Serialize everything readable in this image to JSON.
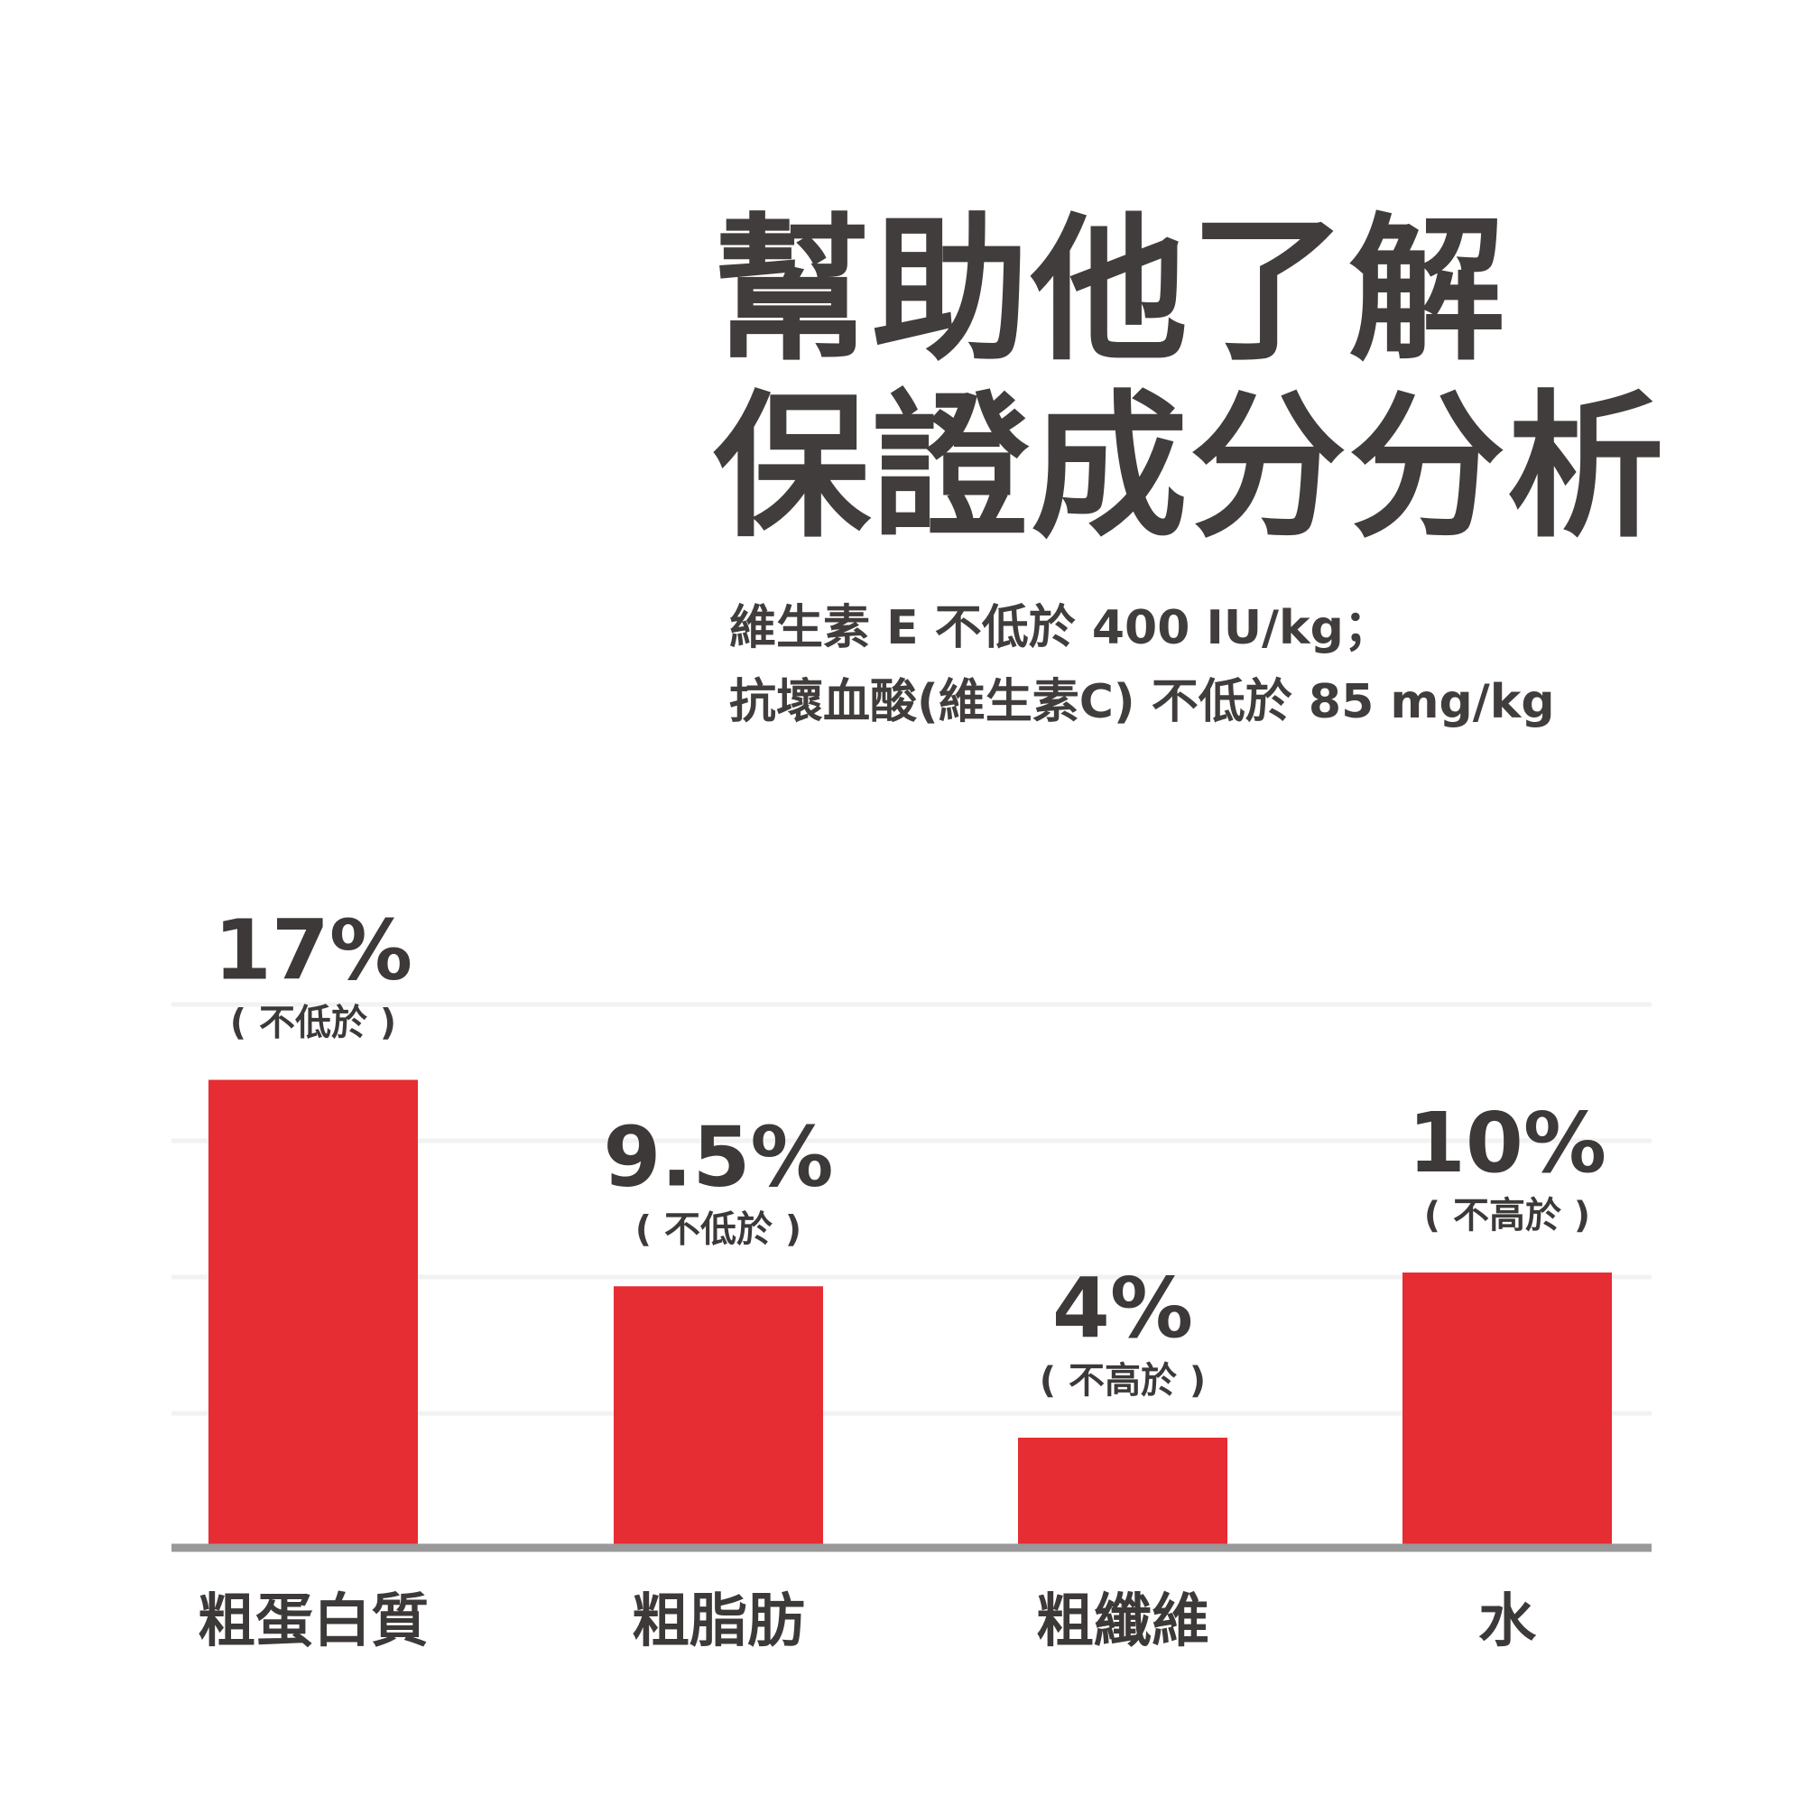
{
  "title": {
    "line1": "幫助他了解",
    "line2": "保證成分分析"
  },
  "subtitle": {
    "line1": "維生素 E 不低於 400 IU/kg；",
    "line2": "抗壞血酸(維生素C) 不低於 85 mg/kg"
  },
  "colors": {
    "bar": "#e52d33",
    "text": "#413d3c",
    "grid": "#f2f2f2",
    "axis": "#999999"
  },
  "chart_data": {
    "type": "bar",
    "categories": [
      "粗蛋白質",
      "粗脂肪",
      "粗纖維",
      "水"
    ],
    "values": [
      17,
      9.5,
      4,
      10
    ],
    "value_labels": [
      "17%",
      "9.5%",
      "4%",
      "10%"
    ],
    "notes": [
      "( 不低於 )",
      "( 不低於 )",
      "( 不高於 )",
      "( 不高於 )"
    ],
    "ylim": [
      0,
      20
    ],
    "grid": true
  }
}
